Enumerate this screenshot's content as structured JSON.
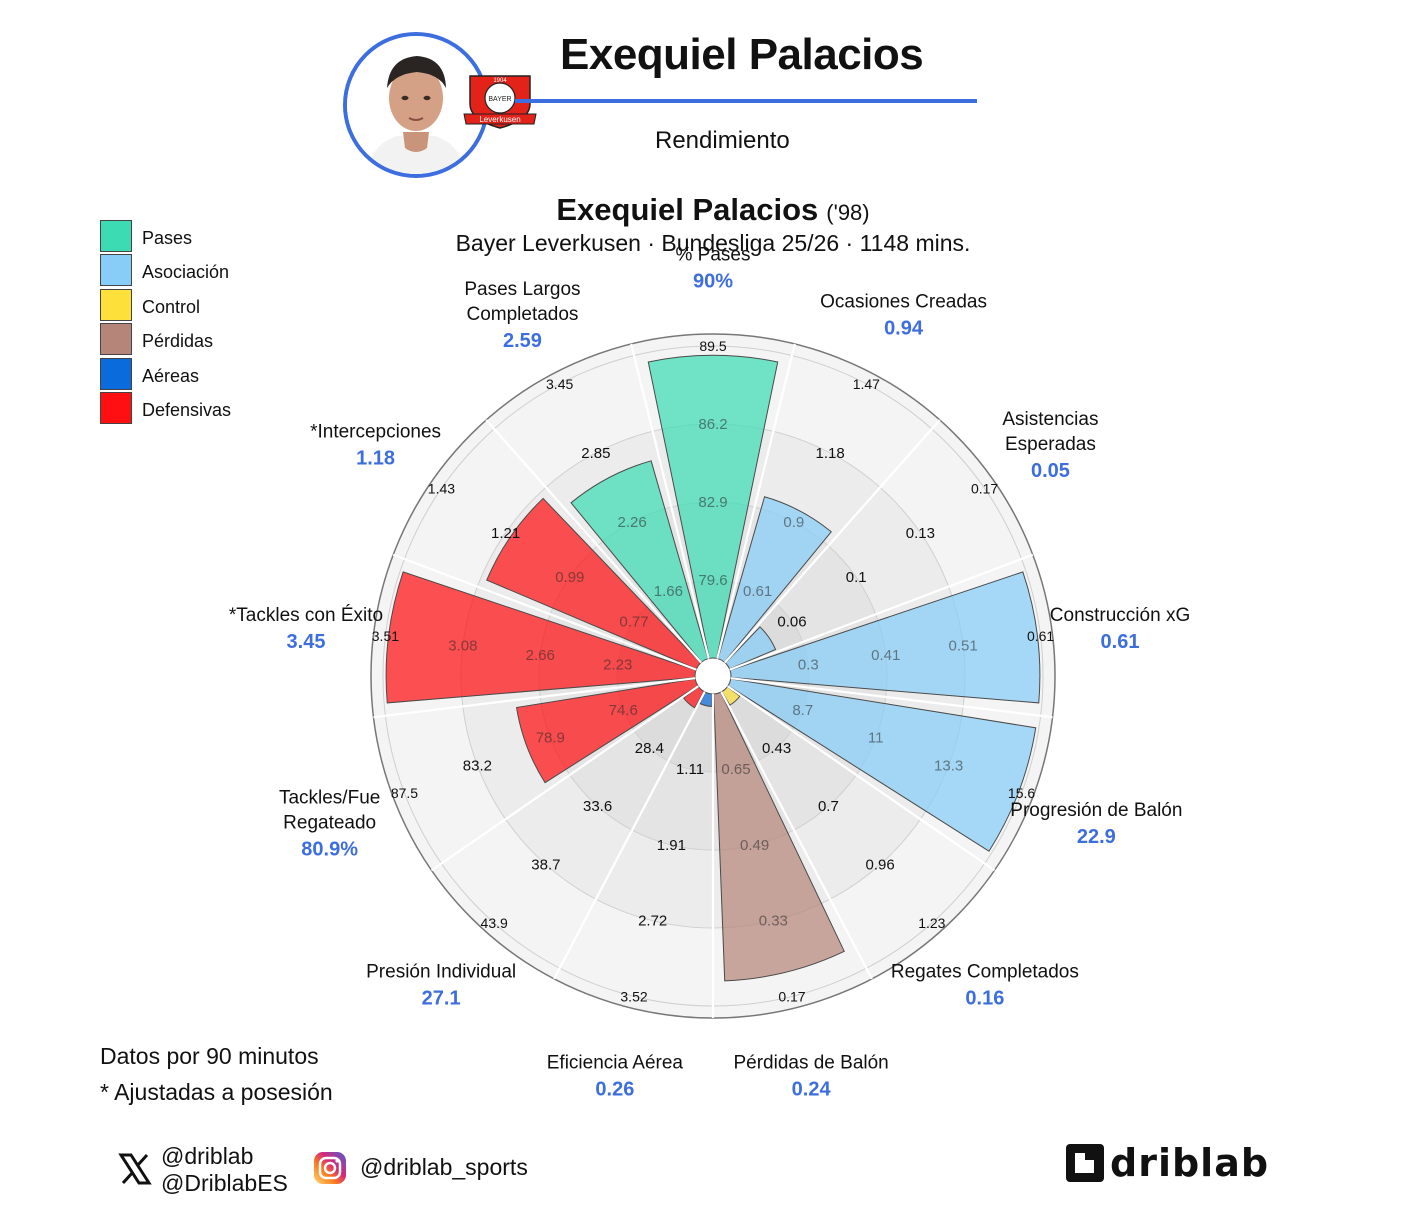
{
  "header": {
    "title": "Exequiel Palacios",
    "subtitle": "Rendimiento",
    "badge_text": "1904 BAYER Leverkusen"
  },
  "chart_data": {
    "type": "radial-bar",
    "title": "Exequiel Palacios",
    "title_suffix": "('98)",
    "subtitle": "Bayer Leverkusen · Bundesliga 25/26 · 1148 mins.",
    "colors": {
      "Pases": "#3ddbb3",
      "Asociación": "#87cdf7",
      "Control": "#fde03a",
      "Pérdidas": "#b5857a",
      "Aéreas": "#0a6bdc",
      "Defensivas": "#ff0f12"
    },
    "legend": [
      "Pases",
      "Asociación",
      "Control",
      "Pérdidas",
      "Aéreas",
      "Defensivas"
    ],
    "metrics": [
      {
        "label": "% Pases",
        "value_label": "90%",
        "group": "Pases",
        "percentile": 0.97,
        "ticks": [
          "79.6",
          "82.9",
          "86.2",
          "89.5"
        ]
      },
      {
        "label": "Ocasiones Creadas",
        "value_label": "0.94",
        "group": "Asociación",
        "percentile": 0.54,
        "ticks": [
          "0.61",
          "0.9",
          "1.18",
          "1.47"
        ]
      },
      {
        "label": "Asistencias Esperadas",
        "value_label": "0.05",
        "group": "Asociación",
        "percentile": 0.16,
        "ticks": [
          "0.06",
          "0.1",
          "0.13",
          "0.17"
        ]
      },
      {
        "label": "Construcción xG",
        "value_label": "0.61",
        "group": "Asociación",
        "percentile": 0.99,
        "ticks": [
          "0.3",
          "0.41",
          "0.51",
          "0.61"
        ]
      },
      {
        "label": "Progresión de Balón",
        "value_label": "22.9",
        "group": "Asociación",
        "percentile": 0.99,
        "ticks": [
          "8.7",
          "11",
          "13.3",
          "15.6"
        ]
      },
      {
        "label": "Regates Completados",
        "value_label": "0.16",
        "group": "Control",
        "percentile": 0.05,
        "ticks": [
          "0.43",
          "0.7",
          "0.96",
          "1.23"
        ]
      },
      {
        "label": "Pérdidas de Balón",
        "value_label": "0.24",
        "group": "Pérdidas",
        "percentile": 0.92,
        "ticks": [
          "0.65",
          "0.49",
          "0.33",
          "0.17"
        ]
      },
      {
        "label": "Eficiencia Aérea",
        "value_label": "0.26",
        "group": "Aéreas",
        "percentile": 0.04,
        "ticks": [
          "1.11",
          "1.91",
          "2.72",
          "3.52"
        ]
      },
      {
        "label": "Presión Individual",
        "value_label": "27.1",
        "group": "Defensivas",
        "percentile": 0.06,
        "ticks": [
          "28.4",
          "33.6",
          "38.7",
          "43.9"
        ]
      },
      {
        "label": "Tackles/Fue Regateado",
        "value_label": "80.9%",
        "group": "Defensivas",
        "percentile": 0.58,
        "ticks": [
          "74.6",
          "78.9",
          "83.2",
          "87.5"
        ]
      },
      {
        "label": "*Tackles con Éxito",
        "value_label": "3.45",
        "group": "Defensivas",
        "percentile": 0.99,
        "ticks": [
          "2.23",
          "2.66",
          "3.08",
          "3.51"
        ]
      },
      {
        "label": "*Intercepciones",
        "value_label": "1.18",
        "group": "Defensivas",
        "percentile": 0.73,
        "ticks": [
          "0.77",
          "0.99",
          "1.21",
          "1.43"
        ]
      },
      {
        "label": "Pases Largos Completados",
        "value_label": "2.59",
        "group": "Pases",
        "percentile": 0.66,
        "ticks": [
          "1.66",
          "2.26",
          "2.85",
          "3.45"
        ]
      }
    ]
  },
  "notes": [
    "Datos por 90 minutos",
    "* Ajustadas a posesión"
  ],
  "footer": {
    "twitter_1": "@driblab",
    "twitter_2": "@DriblabES",
    "instagram": "@driblab_sports",
    "brand": "driblab"
  }
}
